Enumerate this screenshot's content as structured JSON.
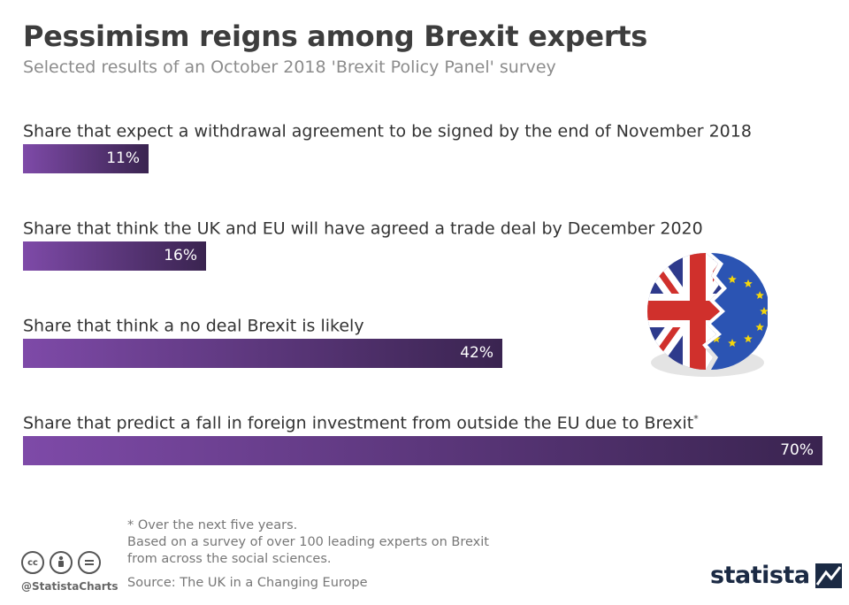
{
  "chart_data": {
    "type": "bar",
    "orientation": "horizontal",
    "title": "Pessimism reigns among Brexit experts",
    "subtitle": "Selected results of an October 2018 'Brexit Policy Panel' survey",
    "categories": [
      "Share that expect a withdrawal agreement to be signed by the end of November 2018",
      "Share that think the UK and EU will have agreed a trade deal by December 2020",
      "Share that think a no deal Brexit is likely",
      "Share that predict a fall in foreign investment from outside the EU due to Brexit"
    ],
    "category_footnote_marks": [
      "",
      "",
      "",
      "*"
    ],
    "values": [
      11,
      16,
      42,
      70
    ],
    "value_labels": [
      "11%",
      "16%",
      "42%",
      "70%"
    ],
    "unit": "%",
    "xlim": [
      0,
      70
    ],
    "grid": false,
    "bar_colors": [
      "#7e4aa8",
      "#3a2450"
    ]
  },
  "footnote": {
    "note": "* Over the next five years.",
    "description_line1": "Based on a survey of over 100 leading experts on Brexit",
    "description_line2": "from across the social sciences.",
    "source": "Source: The UK in a Changing Europe"
  },
  "branding": {
    "handle": "@StatistaCharts",
    "logo_text": "statista",
    "license_icons": [
      "cc-icon",
      "attribution-icon",
      "no-derivatives-icon"
    ]
  },
  "illustration": {
    "name": "broken-uk-eu-flag-emblem",
    "colors": {
      "uk_blue": "#2e3a8c",
      "uk_red": "#d0302c",
      "eu_blue": "#2b54b3",
      "eu_star": "#f5d60a"
    }
  }
}
